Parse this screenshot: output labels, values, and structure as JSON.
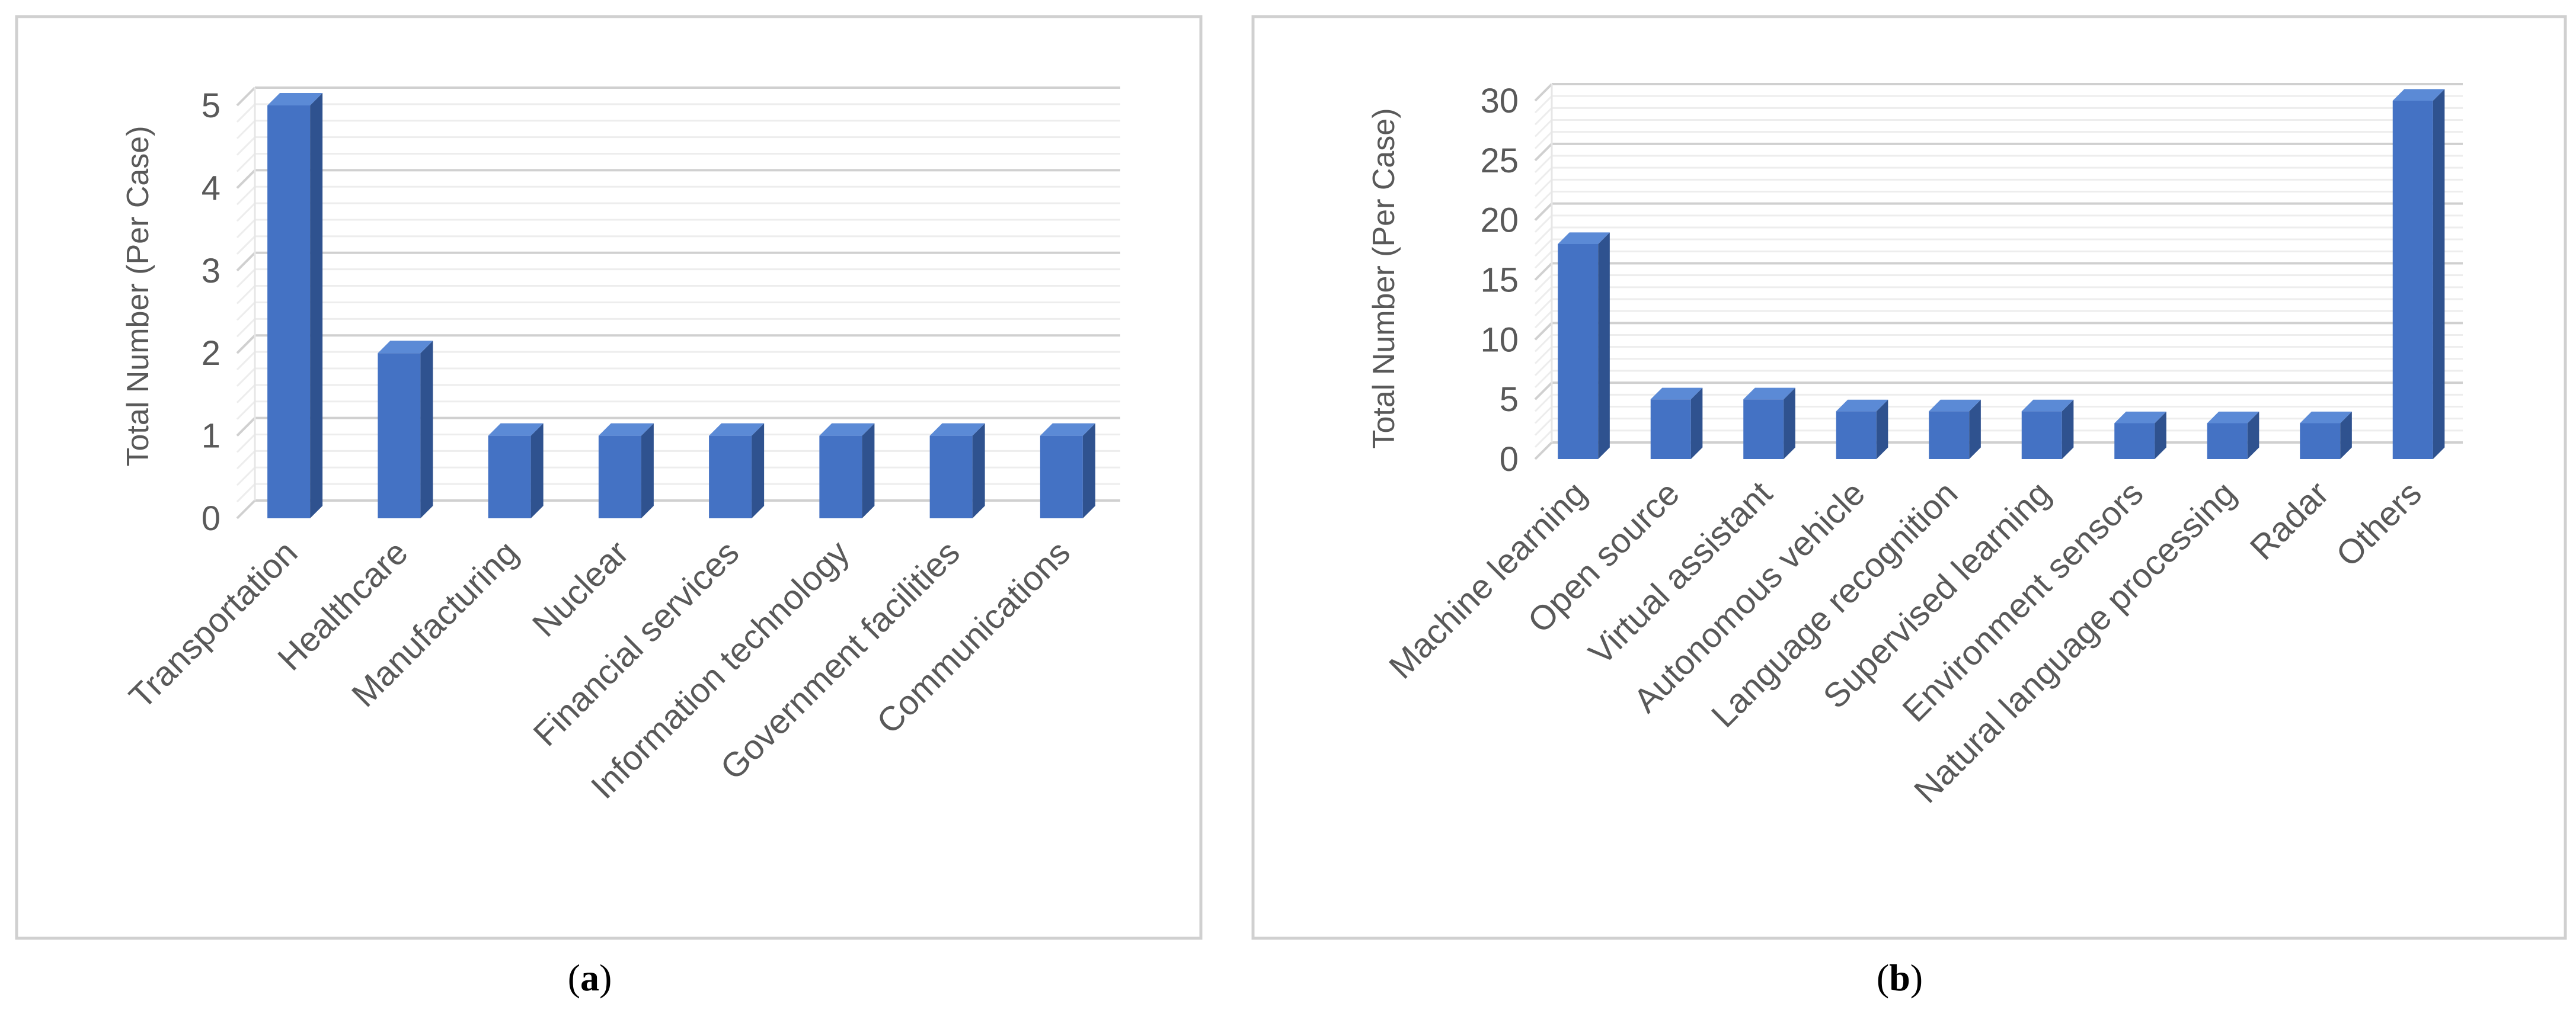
{
  "colors": {
    "bar_front": "#4472C4",
    "bar_side": "#2F528F",
    "bar_top": "#5B8AD6",
    "gridline": "#D9D9D9",
    "panel_border": "#D0D0D0",
    "text": "#595959",
    "caption": "#000000"
  },
  "chart_data": [
    {
      "type": "bar",
      "caption": "(a)",
      "caption_letter": "a",
      "title": "",
      "xlabel": "",
      "ylabel": "Total Number (Per Case)",
      "ylim": [
        0,
        5
      ],
      "yticks": [
        0,
        1,
        2,
        3,
        4,
        5
      ],
      "minor_step": 0.2,
      "grid": true,
      "legend": "none",
      "categories": [
        "Transportation",
        "Healthcare",
        "Manufacturing",
        "Nuclear",
        "Financial services",
        "Information technology",
        "Government facilities",
        "Communications"
      ],
      "values": [
        5,
        2,
        1,
        1,
        1,
        1,
        1,
        1
      ]
    },
    {
      "type": "bar",
      "caption": "(b)",
      "caption_letter": "b",
      "title": "",
      "xlabel": "",
      "ylabel": "Total Number (Per Case)",
      "ylim": [
        0,
        30
      ],
      "yticks": [
        0,
        5,
        10,
        15,
        20,
        25,
        30
      ],
      "minor_step": 1,
      "grid": true,
      "legend": "none",
      "categories": [
        "Machine learning",
        "Open source",
        "Virtual assistant",
        "Autonomous vehicle",
        "Language recognition",
        "Supervised learning",
        "Environment sensors",
        "Natural language processing",
        "Radar",
        "Others"
      ],
      "values": [
        18,
        5,
        5,
        4,
        4,
        4,
        3,
        3,
        3,
        30
      ]
    }
  ]
}
